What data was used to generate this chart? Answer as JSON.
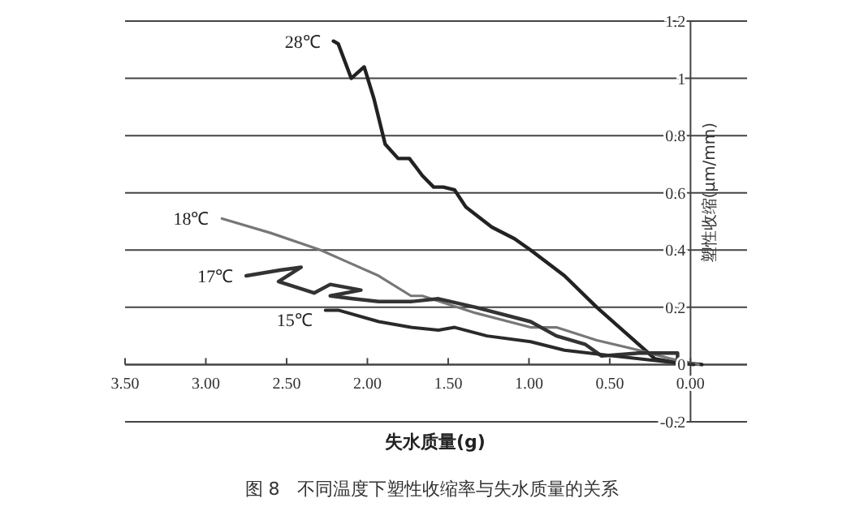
{
  "chart_data": {
    "type": "line",
    "xlabel": "失水质量(g)",
    "ylabel": "塑性收缩(μm/mm)",
    "annotations": [
      "图 8　不同温度下塑性收缩率与失水质量的关系"
    ],
    "xlim": [
      3.5,
      -0.35
    ],
    "ylim": [
      -0.2,
      1.2
    ],
    "xticks": [
      {
        "value": 3.5,
        "label": "3.50"
      },
      {
        "value": 3,
        "label": "3.00"
      },
      {
        "value": 2.5,
        "label": "2.50"
      },
      {
        "value": 2,
        "label": "2.00"
      },
      {
        "value": 1.5,
        "label": "1.50"
      },
      {
        "value": 1,
        "label": "1.00"
      },
      {
        "value": 0.5,
        "label": "0.50"
      },
      {
        "value": 0,
        "label": "0.00"
      }
    ],
    "yticks": [
      -0.2,
      0,
      0.2,
      0.4,
      0.6,
      0.8,
      1,
      1.2
    ],
    "grid": "y",
    "legend": false,
    "marker": "none",
    "line_style": "solid",
    "series": [
      {
        "name": "28℃",
        "color": "#222222",
        "x": [
          2.21,
          2.18,
          2.1,
          2.02,
          1.96,
          1.89,
          1.81,
          1.74,
          1.66,
          1.59,
          1.53,
          1.46,
          1.39,
          1.23,
          1.09,
          0.99,
          0.78,
          0.58,
          0.38,
          0.22,
          0.12,
          -0.07
        ],
        "values": [
          1.13,
          1.12,
          1.0,
          1.04,
          0.93,
          0.77,
          0.72,
          0.72,
          0.66,
          0.62,
          0.62,
          0.61,
          0.55,
          0.48,
          0.44,
          0.4,
          0.31,
          0.2,
          0.1,
          0.02,
          0.01,
          0
        ]
      },
      {
        "name": "18℃",
        "color": "#777777",
        "x": [
          2.9,
          2.6,
          2.29,
          2.13,
          1.93,
          1.73,
          1.66,
          1.33,
          0.99,
          0.83,
          0.58,
          0.32,
          0.12,
          -0.05
        ],
        "values": [
          0.51,
          0.46,
          0.4,
          0.36,
          0.31,
          0.24,
          0.24,
          0.18,
          0.13,
          0.13,
          0.085,
          0.05,
          0.02,
          0
        ]
      },
      {
        "name": "17℃",
        "color": "#333333",
        "x": [
          2.75,
          2.54,
          2.41,
          2.55,
          2.33,
          2.23,
          2.04,
          2.23,
          2.09,
          1.93,
          1.73,
          1.56,
          1.33,
          0.99,
          0.83,
          0.65,
          0.55,
          0.32,
          0.08,
          0.08
        ],
        "values": [
          0.31,
          0.33,
          0.34,
          0.29,
          0.25,
          0.28,
          0.26,
          0.24,
          0.23,
          0.22,
          0.22,
          0.23,
          0.2,
          0.15,
          0.1,
          0.07,
          0.03,
          0.04,
          0.04,
          0.01
        ]
      },
      {
        "name": "15℃",
        "color": "#2a2a2a",
        "x": [
          2.26,
          2.18,
          1.93,
          1.73,
          1.56,
          1.46,
          1.26,
          0.99,
          0.78,
          0.48,
          0.15,
          -0.02
        ],
        "values": [
          0.19,
          0.19,
          0.15,
          0.13,
          0.12,
          0.13,
          0.1,
          0.08,
          0.05,
          0.03,
          0.01,
          0
        ]
      }
    ]
  }
}
